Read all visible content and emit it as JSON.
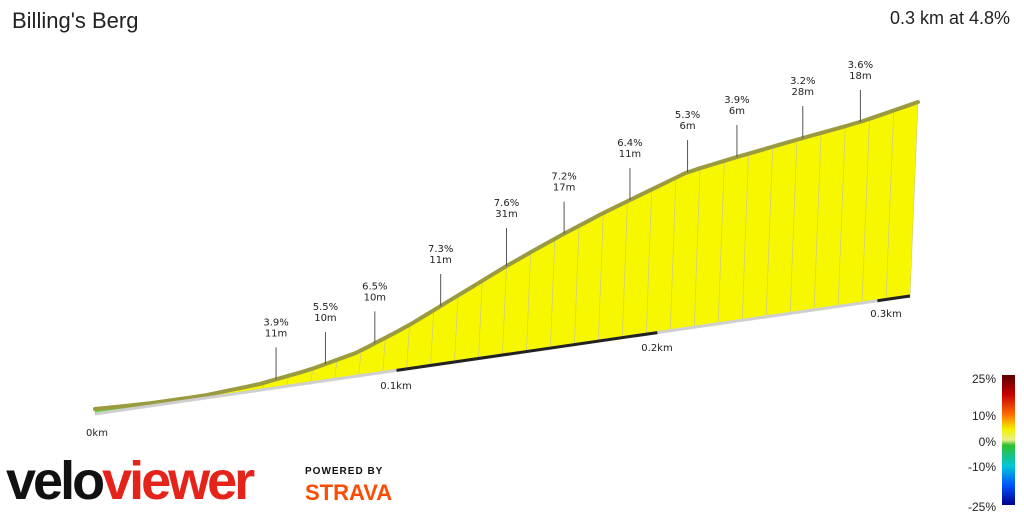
{
  "header": {
    "title": "Billing's Berg",
    "summary": "0.3 km at 4.8%"
  },
  "chart_data": {
    "type": "area",
    "title": "Billing's Berg",
    "x_unit": "km",
    "distance_labels": [
      "0km",
      "0.1km",
      "0.2km",
      "0.3km"
    ],
    "segments": [
      {
        "grade": "3.9%",
        "length": "11m"
      },
      {
        "grade": "5.5%",
        "length": "10m"
      },
      {
        "grade": "6.5%",
        "length": "10m"
      },
      {
        "grade": "7.3%",
        "length": "11m"
      },
      {
        "grade": "7.6%",
        "length": "31m"
      },
      {
        "grade": "7.2%",
        "length": "17m"
      },
      {
        "grade": "6.4%",
        "length": "11m"
      },
      {
        "grade": "5.3%",
        "length": "6m"
      },
      {
        "grade": "3.9%",
        "length": "6m"
      },
      {
        "grade": "3.2%",
        "length": "28m"
      },
      {
        "grade": "3.6%",
        "length": "18m"
      }
    ],
    "color_scale": {
      "labels": [
        "25%",
        "10%",
        "0%",
        "-10%",
        "-25%"
      ]
    }
  },
  "brand": {
    "velo": "velo",
    "viewer": "viewer",
    "powered": "POWERED BY",
    "strava": "STRAVA"
  }
}
